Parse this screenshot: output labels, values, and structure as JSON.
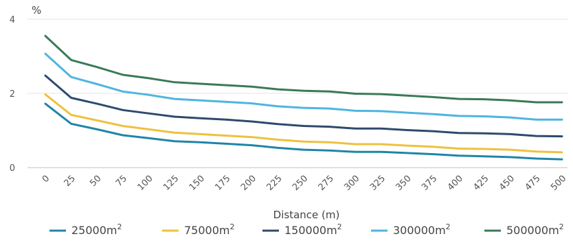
{
  "chart_data": {
    "type": "line",
    "y_unit_label": "%",
    "xlabel": "Distance (m)",
    "ylabel": "",
    "ylim": [
      0,
      4
    ],
    "y_ticks": [
      0,
      2,
      4
    ],
    "x": [
      0,
      25,
      50,
      75,
      100,
      125,
      150,
      175,
      200,
      225,
      250,
      275,
      300,
      325,
      350,
      375,
      400,
      425,
      450,
      475,
      500
    ],
    "x_tick_labels": [
      "0",
      "25",
      "50",
      "75",
      "100",
      "125",
      "150",
      "175",
      "200",
      "225",
      "250",
      "275",
      "300",
      "325",
      "350",
      "375",
      "400",
      "425",
      "450",
      "475",
      "500"
    ],
    "grid": "horizontal",
    "legend_position": "bottom",
    "series": [
      {
        "legend_base": "25000m",
        "legend_sup": "2",
        "color": "#1f85a8",
        "values": [
          1.72,
          1.18,
          1.03,
          0.87,
          0.79,
          0.71,
          0.68,
          0.64,
          0.6,
          0.53,
          0.48,
          0.46,
          0.42,
          0.42,
          0.39,
          0.36,
          0.32,
          0.3,
          0.28,
          0.24,
          0.22
        ]
      },
      {
        "legend_base": "75000m",
        "legend_sup": "2",
        "color": "#eec13f",
        "values": [
          1.97,
          1.42,
          1.27,
          1.12,
          1.03,
          0.94,
          0.9,
          0.86,
          0.82,
          0.75,
          0.7,
          0.68,
          0.63,
          0.63,
          0.59,
          0.56,
          0.51,
          0.5,
          0.48,
          0.43,
          0.41
        ]
      },
      {
        "legend_base": "150000m",
        "legend_sup": "2",
        "color": "#2e4a6e",
        "values": [
          2.48,
          1.88,
          1.72,
          1.55,
          1.46,
          1.37,
          1.33,
          1.29,
          1.24,
          1.17,
          1.12,
          1.1,
          1.05,
          1.05,
          1.01,
          0.98,
          0.93,
          0.92,
          0.9,
          0.85,
          0.84
        ]
      },
      {
        "legend_base": "300000m",
        "legend_sup": "2",
        "color": "#4db5e0",
        "values": [
          3.07,
          2.44,
          2.25,
          2.05,
          1.96,
          1.85,
          1.81,
          1.77,
          1.73,
          1.65,
          1.61,
          1.59,
          1.53,
          1.52,
          1.48,
          1.44,
          1.39,
          1.38,
          1.35,
          1.29,
          1.29
        ]
      },
      {
        "legend_base": "500000m",
        "legend_sup": "2",
        "color": "#3a7a55",
        "values": [
          3.55,
          2.9,
          2.71,
          2.5,
          2.41,
          2.3,
          2.26,
          2.22,
          2.18,
          2.11,
          2.07,
          2.05,
          1.99,
          1.98,
          1.94,
          1.9,
          1.85,
          1.84,
          1.81,
          1.76,
          1.76
        ]
      }
    ]
  }
}
